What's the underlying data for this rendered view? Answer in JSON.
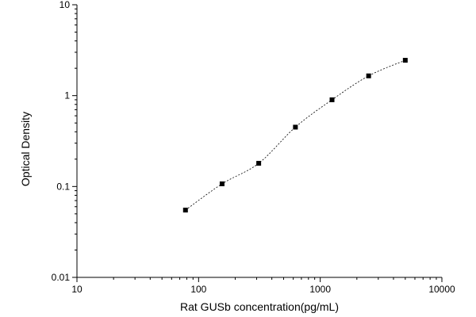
{
  "chart_data": {
    "type": "scatter",
    "xlabel": "Rat GUSb concentration(pg/mL)",
    "ylabel": "Optical Density",
    "xscale": "log",
    "yscale": "log",
    "xlim": [
      10,
      10000
    ],
    "ylim": [
      0.01,
      10
    ],
    "x_ticks": [
      "10",
      "100",
      "1000",
      "10000"
    ],
    "y_ticks": [
      "0.01",
      "0.1",
      "1",
      "10"
    ],
    "grid": false,
    "fit_line": "dashed",
    "marker": "square",
    "points": [
      {
        "x": 78,
        "y": 0.055
      },
      {
        "x": 156,
        "y": 0.107
      },
      {
        "x": 312,
        "y": 0.18
      },
      {
        "x": 625,
        "y": 0.45
      },
      {
        "x": 1250,
        "y": 0.9
      },
      {
        "x": 2500,
        "y": 1.65
      },
      {
        "x": 5000,
        "y": 2.45
      }
    ]
  }
}
